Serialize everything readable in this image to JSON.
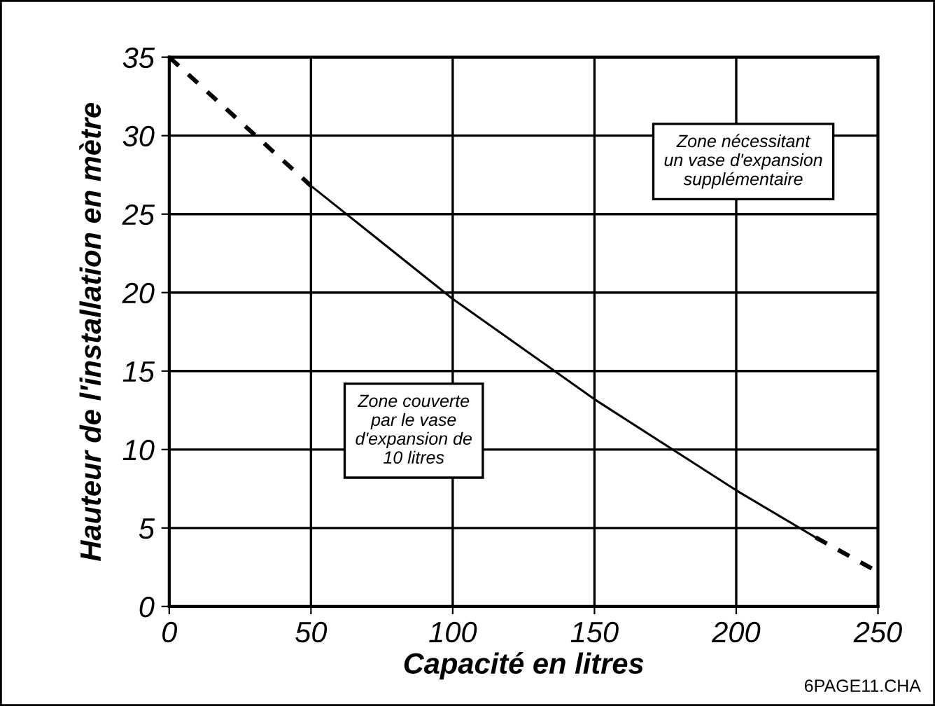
{
  "chart_data": {
    "type": "line",
    "xlabel": "Capacité en litres",
    "ylabel": "Hauteur de l'installation en mètre",
    "series": [
      {
        "color": "#000000",
        "line_style": "dashed",
        "x": [
          0,
          50
        ],
        "values": [
          35,
          26.8
        ]
      },
      {
        "color": "#000000",
        "line_style": "solid",
        "x": [
          50,
          100,
          150,
          200,
          228
        ],
        "values": [
          26.8,
          19.6,
          13.2,
          7.4,
          4.4
        ]
      },
      {
        "color": "#000000",
        "line_style": "dashed",
        "x": [
          228,
          250
        ],
        "values": [
          4.4,
          2.2
        ]
      }
    ],
    "xlim": [
      0,
      250
    ],
    "xticks": [
      0,
      50,
      100,
      150,
      200,
      250
    ],
    "ylim": [
      0,
      35
    ],
    "yticks": [
      0,
      5,
      10,
      15,
      20,
      25,
      30,
      35
    ],
    "grid": true,
    "legend": false,
    "marker": "none",
    "annotations": [
      "Zone nécessitant\nun vase d'expansion\nsupplémentaire",
      "Zone couverte\npar le vase\nd'expansion de\n10 litres",
      "6PAGE11.CHA"
    ]
  }
}
